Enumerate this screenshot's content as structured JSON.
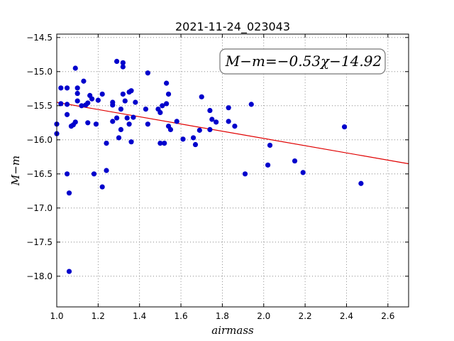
{
  "chart_data": {
    "type": "scatter",
    "title": "2021-11-24_023043",
    "xlabel": "airmass",
    "ylabel": "M−m",
    "xlim": [
      1.0,
      2.7
    ],
    "ylim": [
      -18.45,
      -14.45
    ],
    "y_inverted": true,
    "grid": true,
    "x_ticks": [
      1.0,
      1.2,
      1.4,
      1.6,
      1.8,
      2.0,
      2.2,
      2.4,
      2.6
    ],
    "x_tick_labels": [
      "1.0",
      "1.2",
      "1.4",
      "1.6",
      "1.8",
      "2.0",
      "2.2",
      "2.4",
      "2.6"
    ],
    "y_ticks": [
      -14.5,
      -15.0,
      -15.5,
      -16.0,
      -16.5,
      -17.0,
      -17.5,
      -18.0
    ],
    "y_tick_labels": [
      "−14.5",
      "−15.0",
      "−15.5",
      "−16.0",
      "−16.5",
      "−17.0",
      "−17.5",
      "−18.0"
    ],
    "annotation": "M−m=−0.53χ−14.92",
    "fit": {
      "slope": -0.53,
      "intercept": -14.92,
      "color": "#e00000"
    },
    "marker_color": "#0000cc",
    "points": [
      [
        1.0,
        -15.77
      ],
      [
        1.0,
        -15.91
      ],
      [
        1.02,
        -15.24
      ],
      [
        1.02,
        -15.47
      ],
      [
        1.05,
        -15.24
      ],
      [
        1.05,
        -15.48
      ],
      [
        1.05,
        -15.63
      ],
      [
        1.05,
        -16.5
      ],
      [
        1.06,
        -16.78
      ],
      [
        1.06,
        -17.93
      ],
      [
        1.07,
        -15.8
      ],
      [
        1.08,
        -15.78
      ],
      [
        1.09,
        -14.95
      ],
      [
        1.09,
        -15.74
      ],
      [
        1.1,
        -15.24
      ],
      [
        1.1,
        -15.32
      ],
      [
        1.1,
        -15.43
      ],
      [
        1.12,
        -15.5
      ],
      [
        1.13,
        -15.14
      ],
      [
        1.14,
        -15.49
      ],
      [
        1.15,
        -15.46
      ],
      [
        1.15,
        -15.75
      ],
      [
        1.16,
        -15.35
      ],
      [
        1.17,
        -15.4
      ],
      [
        1.18,
        -16.5
      ],
      [
        1.19,
        -15.77
      ],
      [
        1.2,
        -15.42
      ],
      [
        1.22,
        -15.33
      ],
      [
        1.22,
        -16.69
      ],
      [
        1.24,
        -16.05
      ],
      [
        1.24,
        -16.45
      ],
      [
        1.27,
        -15.45
      ],
      [
        1.27,
        -15.49
      ],
      [
        1.27,
        -15.73
      ],
      [
        1.29,
        -14.85
      ],
      [
        1.29,
        -15.68
      ],
      [
        1.3,
        -15.97
      ],
      [
        1.31,
        -15.55
      ],
      [
        1.31,
        -15.85
      ],
      [
        1.32,
        -14.87
      ],
      [
        1.32,
        -14.93
      ],
      [
        1.32,
        -15.33
      ],
      [
        1.33,
        -15.43
      ],
      [
        1.34,
        -15.68
      ],
      [
        1.35,
        -15.3
      ],
      [
        1.35,
        -15.77
      ],
      [
        1.36,
        -15.28
      ],
      [
        1.36,
        -16.03
      ],
      [
        1.37,
        -15.67
      ],
      [
        1.38,
        -15.45
      ],
      [
        1.43,
        -15.55
      ],
      [
        1.44,
        -15.02
      ],
      [
        1.44,
        -15.77
      ],
      [
        1.49,
        -15.55
      ],
      [
        1.5,
        -16.05
      ],
      [
        1.5,
        -15.6
      ],
      [
        1.51,
        -15.5
      ],
      [
        1.52,
        -16.05
      ],
      [
        1.53,
        -15.17
      ],
      [
        1.53,
        -15.47
      ],
      [
        1.54,
        -15.33
      ],
      [
        1.54,
        -15.8
      ],
      [
        1.55,
        -15.85
      ],
      [
        1.58,
        -15.73
      ],
      [
        1.61,
        -15.99
      ],
      [
        1.66,
        -15.97
      ],
      [
        1.67,
        -16.07
      ],
      [
        1.69,
        -15.86
      ],
      [
        1.7,
        -15.37
      ],
      [
        1.74,
        -15.57
      ],
      [
        1.74,
        -15.85
      ],
      [
        1.75,
        -15.7
      ],
      [
        1.77,
        -15.74
      ],
      [
        1.83,
        -15.53
      ],
      [
        1.83,
        -15.73
      ],
      [
        1.86,
        -15.8
      ],
      [
        1.91,
        -16.5
      ],
      [
        1.94,
        -15.48
      ],
      [
        2.02,
        -16.37
      ],
      [
        2.03,
        -16.08
      ],
      [
        2.15,
        -16.31
      ],
      [
        2.19,
        -16.48
      ],
      [
        2.39,
        -15.81
      ],
      [
        2.47,
        -16.64
      ]
    ]
  }
}
